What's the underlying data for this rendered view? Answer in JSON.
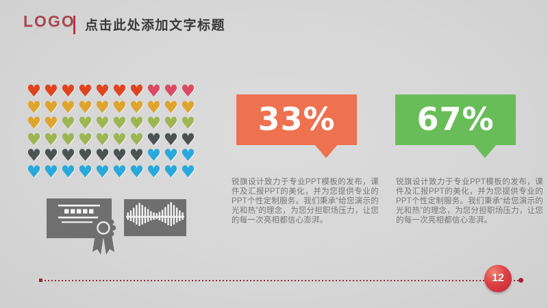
{
  "header": {
    "logo": "LOGO",
    "title": "点击此处添加文字标题"
  },
  "heart_grid": {
    "glyph": "♥",
    "columns": 10,
    "rows": 6,
    "segments": [
      {
        "color": "#e2431f",
        "name": "red-orange",
        "count": 7
      },
      {
        "color": "#db4a62",
        "name": "crimson",
        "count": 3
      },
      {
        "color": "#dfa42c",
        "name": "gold",
        "count": 12
      },
      {
        "color": "#9fb553",
        "name": "olive-green",
        "count": 15
      },
      {
        "color": "#4c5251",
        "name": "dark-gray",
        "count": 10
      },
      {
        "color": "#29a8dc",
        "name": "blue",
        "count": 13
      }
    ]
  },
  "callouts": [
    {
      "value": "33%",
      "color": "#ee7150",
      "description": "锐旗设计致力于专业PPT模板的发布，课件及汇报PPT的美化，并为您提供专业的PPT个性定制服务。我们秉承“给您演示的光和热”的理念，为您分担职场压力，让您的每一次亮相都信心澎湃。"
    },
    {
      "value": "67%",
      "color": "#69bd58",
      "description": "锐旗设计致力于专业PPT模板的发布，课件及汇报PPT的美化，并为您提供专业的PPT个性定制服务。我们秉承“给您演示的光和热”的理念，为您分担职场压力，让您的每一次亮相都信心澎湃。"
    }
  ],
  "icons": [
    "certificate-icon",
    "waveform-icon"
  ],
  "footer": {
    "page_number": "12",
    "line_color": "#9e2130"
  },
  "colors": {
    "background": "#d6d6d6",
    "logo_red": "#a8454f",
    "title_text": "#393939",
    "body_text": "#767676",
    "icon_gray": "#6f6f6f",
    "badge_red": "#d23038"
  },
  "chart_data": {
    "type": "pictograph",
    "unit": "heart",
    "title": "",
    "grid": {
      "rows": 6,
      "columns": 10,
      "total_units": 60
    },
    "segments": [
      {
        "name": "red-orange",
        "color": "#e2431f",
        "count": 7
      },
      {
        "name": "crimson",
        "color": "#db4a62",
        "count": 3
      },
      {
        "name": "gold",
        "color": "#dfa42c",
        "count": 12
      },
      {
        "name": "olive-green",
        "color": "#9fb553",
        "count": 15
      },
      {
        "name": "dark-gray",
        "color": "#4c5251",
        "count": 10
      },
      {
        "name": "blue",
        "color": "#29a8dc",
        "count": 13
      }
    ],
    "annotations": [
      {
        "label": "33%",
        "color": "#ee7150"
      },
      {
        "label": "67%",
        "color": "#69bd58"
      }
    ],
    "legend_position": "none",
    "grid_lines": false
  }
}
